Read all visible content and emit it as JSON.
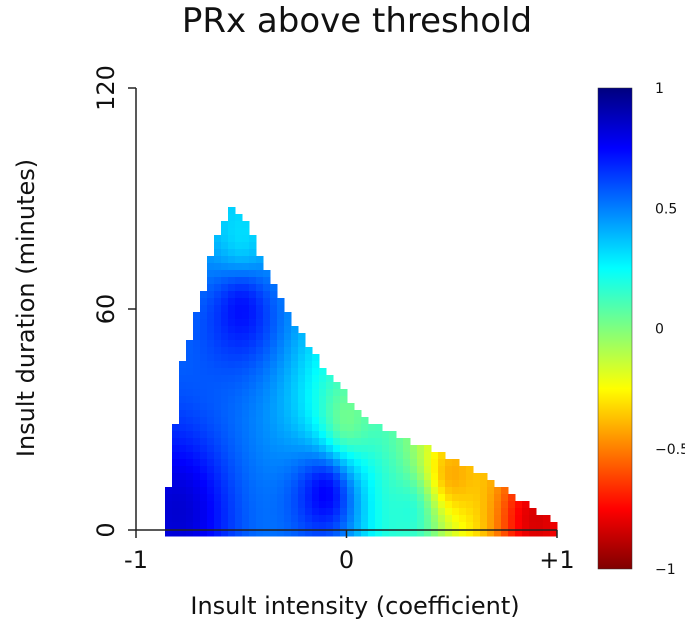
{
  "chart_data": {
    "type": "heatmap",
    "title": "PRx above threshold",
    "xlabel": "Insult intensity (coefficient)",
    "ylabel": "Insult duration (minutes)",
    "xlim": [
      -1,
      1
    ],
    "ylim": [
      0,
      120
    ],
    "x_ticks": [
      {
        "value": -1,
        "label": "-1"
      },
      {
        "value": 0,
        "label": "0"
      },
      {
        "value": 1,
        "label": "+1"
      }
    ],
    "y_ticks": [
      {
        "value": 0,
        "label": "0"
      },
      {
        "value": 60,
        "label": "60"
      },
      {
        "value": 120,
        "label": "120"
      }
    ],
    "colorbar": {
      "range": [
        -1,
        1
      ],
      "colormap": "jet",
      "ticks": [
        {
          "value": 1,
          "label": "1"
        },
        {
          "value": 0.5,
          "label": "0.5"
        },
        {
          "value": 0,
          "label": "0"
        },
        {
          "value": -0.5,
          "label": "−0.5"
        },
        {
          "value": -1,
          "label": "−1"
        }
      ],
      "colors": [
        "#7f0000",
        "#ff0000",
        "#ff7f00",
        "#ffff00",
        "#7fff7f",
        "#00ffff",
        "#007fff",
        "#0000ff",
        "#00007f"
      ]
    },
    "region_boundary": {
      "x": [
        -0.85,
        -0.82,
        -0.78,
        -0.73,
        -0.68,
        -0.62,
        -0.55,
        -0.48,
        -0.4,
        -0.32,
        -0.25,
        -0.18,
        -0.1,
        -0.02,
        0.05,
        0.15,
        0.25,
        0.35,
        0.45,
        0.55,
        0.65,
        0.75,
        0.85,
        0.93,
        1.0
      ],
      "y_max": [
        10,
        24,
        45,
        55,
        65,
        80,
        88,
        84,
        73,
        63,
        56,
        50,
        43,
        38,
        32,
        28,
        25,
        23,
        21,
        18,
        15,
        11,
        7,
        4,
        1
      ]
    },
    "value_model": {
      "description": "PRx value field: high (~0.9) at low intensity, decreasing toward about -0.9 at high intensity",
      "samples": [
        {
          "x": -0.8,
          "y": 5,
          "value": 0.85
        },
        {
          "x": -0.5,
          "y": 60,
          "value": 0.75
        },
        {
          "x": -0.5,
          "y": 80,
          "value": 0.3
        },
        {
          "x": -0.1,
          "y": 10,
          "value": 0.8
        },
        {
          "x": 0.0,
          "y": 30,
          "value": 0.0
        },
        {
          "x": 0.3,
          "y": 5,
          "value": 0.2
        },
        {
          "x": 0.5,
          "y": 15,
          "value": -0.45
        },
        {
          "x": 0.9,
          "y": 3,
          "value": -0.85
        }
      ]
    }
  }
}
